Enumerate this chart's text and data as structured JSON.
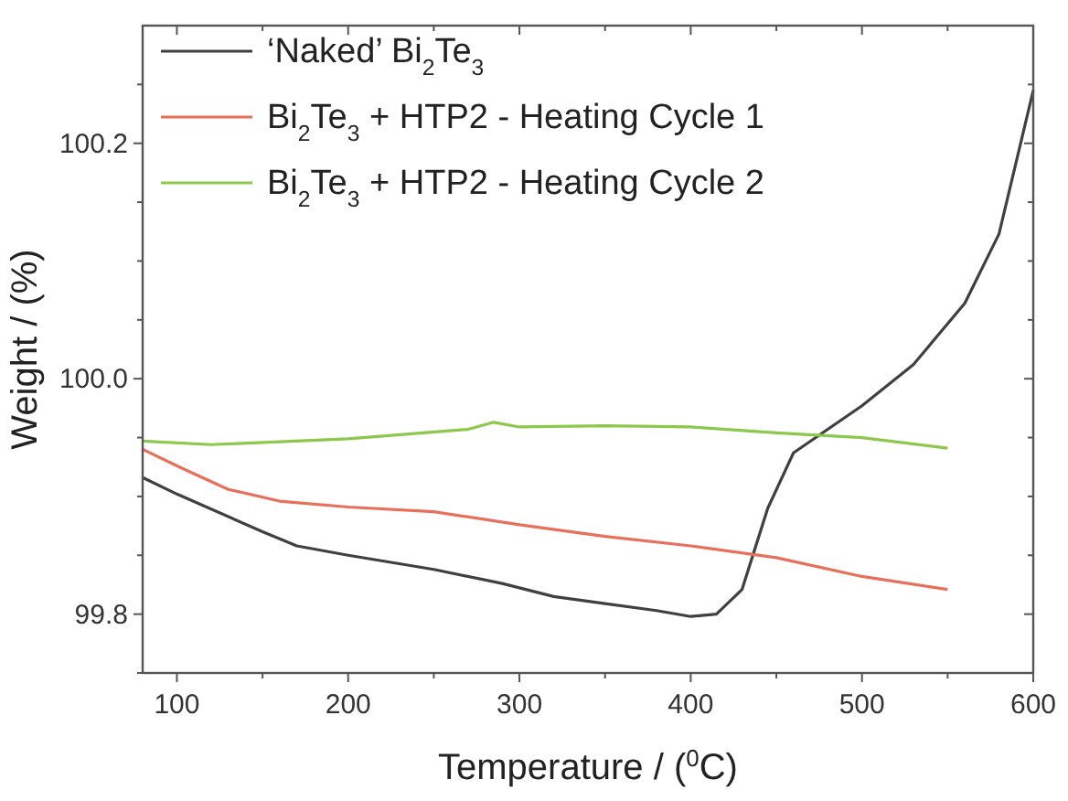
{
  "chart_data": {
    "type": "line",
    "xlabel": "Temperature / ($^{0}$C)",
    "ylabel": "Weight / (%)",
    "legend": "top left",
    "marker": "none",
    "line_style": "solid",
    "grid": false,
    "xlim": [
      80,
      600
    ],
    "ylim": [
      99.75,
      100.3
    ],
    "xticks": [
      100,
      {
        "value": 150,
        "label": null
      },
      200,
      {
        "value": 250,
        "label": null
      },
      300,
      {
        "value": 350,
        "label": null
      },
      400,
      {
        "value": 450,
        "label": null
      },
      500,
      {
        "value": 550,
        "label": null
      },
      600
    ],
    "yticks": [
      {
        "value": 99.75,
        "label": null
      },
      {
        "value": 99.8,
        "label": "99.8"
      },
      {
        "value": 99.85,
        "label": null
      },
      {
        "value": 99.9,
        "label": null
      },
      {
        "value": 99.95,
        "label": null
      },
      {
        "value": 100,
        "label": "100.0"
      },
      {
        "value": 100.05,
        "label": null
      },
      {
        "value": 100.1,
        "label": null
      },
      {
        "value": 100.15,
        "label": null
      },
      {
        "value": 100.2,
        "label": "100.2"
      },
      {
        "value": 100.25,
        "label": null
      }
    ],
    "series": [
      {
        "name": "‘Naked’ Bi$_{2}$Te$_{3}$",
        "color": "#404040",
        "x": [
          80,
          100,
          150,
          170,
          200,
          250,
          290,
          320,
          350,
          380,
          400,
          415,
          430,
          445,
          460,
          480,
          500,
          530,
          560,
          580,
          600
        ],
        "values": [
          99.916,
          99.902,
          99.87,
          99.858,
          99.85,
          99.838,
          99.826,
          99.815,
          99.809,
          99.803,
          99.798,
          99.8,
          99.821,
          99.89,
          99.937,
          99.957,
          99.977,
          100.012,
          100.064,
          100.123,
          100.245
        ]
      },
      {
        "name": "Bi$_{2}$Te$_{3}$ + HTP2 - Heating Cycle 1",
        "color": "#e8705a",
        "x": [
          80,
          100,
          130,
          160,
          200,
          250,
          300,
          350,
          400,
          450,
          500,
          550
        ],
        "values": [
          99.94,
          99.926,
          99.906,
          99.896,
          99.891,
          99.887,
          99.876,
          99.866,
          99.858,
          99.848,
          99.832,
          99.821
        ]
      },
      {
        "name": "Bi$_{2}$Te$_{3}$ + HTP2 - Heating Cycle 2",
        "color": "#8cc84b",
        "x": [
          80,
          120,
          200,
          270,
          285,
          300,
          350,
          400,
          450,
          500,
          550
        ],
        "values": [
          99.947,
          99.944,
          99.949,
          99.957,
          99.963,
          99.959,
          99.96,
          99.959,
          99.954,
          99.95,
          99.941
        ]
      }
    ]
  }
}
